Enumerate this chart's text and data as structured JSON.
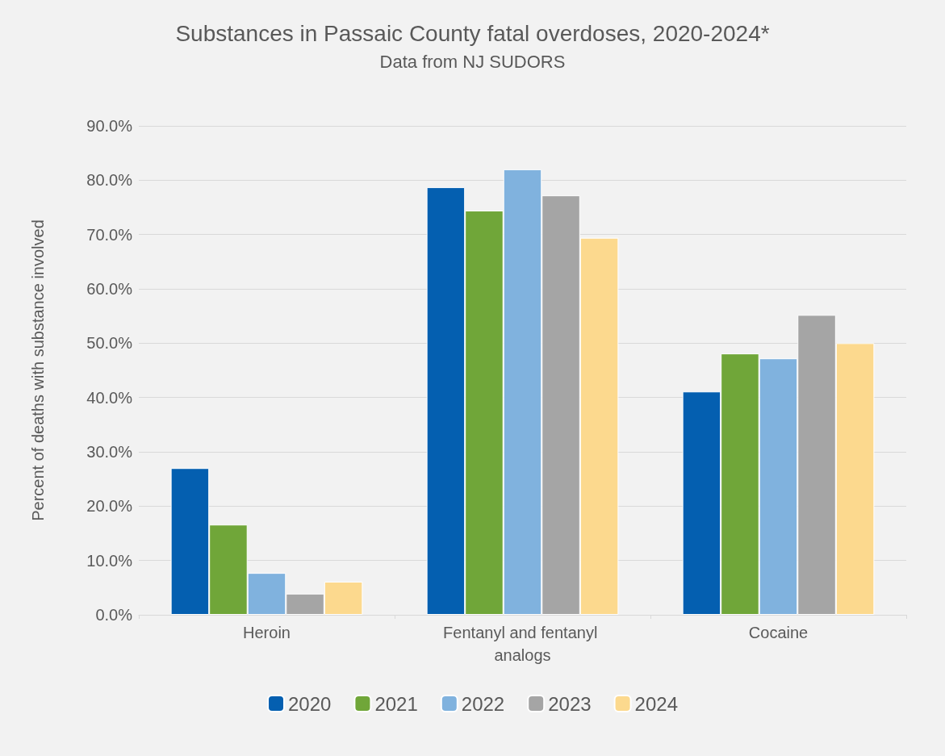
{
  "chart_data": {
    "type": "bar",
    "title": "Substances in Passaic County fatal overdoses, 2020-2024*",
    "subtitle": "Data from NJ SUDORS",
    "ylabel": "Percent of deaths with substance involved",
    "categories": [
      "Heroin",
      "Fentanyl and fentanyl analogs",
      "Cocaine"
    ],
    "series": [
      {
        "name": "2020",
        "color": "#045fb0",
        "values": [
          27.0,
          78.7,
          41.1
        ]
      },
      {
        "name": "2021",
        "color": "#70a639",
        "values": [
          16.6,
          74.4,
          48.1
        ]
      },
      {
        "name": "2022",
        "color": "#80b2de",
        "values": [
          7.7,
          82.0,
          47.2
        ]
      },
      {
        "name": "2023",
        "color": "#a5a5a5",
        "values": [
          3.9,
          77.2,
          55.2
        ]
      },
      {
        "name": "2024",
        "color": "#fcd98e",
        "values": [
          6.1,
          69.4,
          50.0
        ]
      }
    ],
    "ylim": [
      0,
      90
    ],
    "yticks": [
      {
        "value": 0,
        "label": "0.0%"
      },
      {
        "value": 10,
        "label": "10.0%"
      },
      {
        "value": 20,
        "label": "20.0%"
      },
      {
        "value": 30,
        "label": "30.0%"
      },
      {
        "value": 40,
        "label": "40.0%"
      },
      {
        "value": 50,
        "label": "50.0%"
      },
      {
        "value": 60,
        "label": "60.0%"
      },
      {
        "value": 70,
        "label": "70.0%"
      },
      {
        "value": 80,
        "label": "80.0%"
      },
      {
        "value": 90,
        "label": "90.0%"
      }
    ],
    "grid": "y",
    "legend": "bottom"
  }
}
